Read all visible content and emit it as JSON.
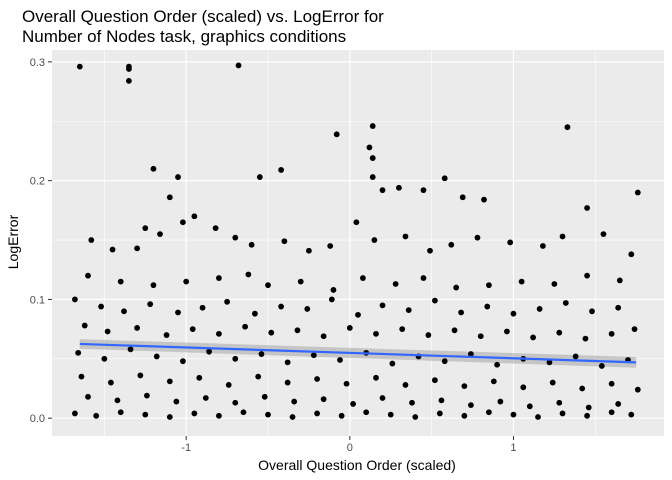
{
  "chart_data": {
    "type": "scatter",
    "title_lines": [
      "Overall Question Order (scaled) vs. LogError for",
      "Number of Nodes task, graphics conditions"
    ],
    "xlabel": "Overall Question Order (scaled)",
    "ylabel": "LogError",
    "xlim": [
      -1.82,
      1.92
    ],
    "ylim": [
      -0.015,
      0.31
    ],
    "x_ticks": [
      -1,
      0,
      1
    ],
    "x_tick_labels": [
      "-1",
      "0",
      "1"
    ],
    "y_ticks": [
      0.0,
      0.1,
      0.2,
      0.3
    ],
    "y_tick_labels": [
      "0.0",
      "0.1",
      "0.2",
      "0.3"
    ],
    "grid": true,
    "legend": "none",
    "colors": {
      "panel_background": "#ebebeb",
      "grid_major": "#ffffff",
      "points": "#000000",
      "trend_line": "#3366ff",
      "confidence_band": "#a6a6a6"
    },
    "trend_line": {
      "x": [
        -1.65,
        1.75
      ],
      "y": [
        0.0625,
        0.047
      ],
      "ci_halfwidth": 0.0045
    },
    "points": [
      [
        -1.65,
        0.296
      ],
      [
        -1.35,
        0.296
      ],
      [
        -1.35,
        0.294
      ],
      [
        -1.35,
        0.284
      ],
      [
        -0.68,
        0.297
      ],
      [
        -1.2,
        0.21
      ],
      [
        -1.05,
        0.203
      ],
      [
        -0.55,
        0.203
      ],
      [
        -0.42,
        0.209
      ],
      [
        -0.08,
        0.239
      ],
      [
        0.14,
        0.246
      ],
      [
        0.12,
        0.228
      ],
      [
        0.14,
        0.219
      ],
      [
        0.14,
        0.203
      ],
      [
        1.33,
        0.245
      ],
      [
        1.76,
        0.19
      ],
      [
        0.69,
        0.186
      ],
      [
        0.58,
        0.202
      ],
      [
        -1.1,
        0.186
      ],
      [
        -0.95,
        0.17
      ],
      [
        0.2,
        0.192
      ],
      [
        0.3,
        0.194
      ],
      [
        0.45,
        0.192
      ],
      [
        0.82,
        0.184
      ],
      [
        1.45,
        0.177
      ],
      [
        -1.58,
        0.15
      ],
      [
        -1.45,
        0.142
      ],
      [
        -1.3,
        0.143
      ],
      [
        -1.25,
        0.16
      ],
      [
        -1.16,
        0.155
      ],
      [
        -1.02,
        0.165
      ],
      [
        -0.82,
        0.16
      ],
      [
        -0.7,
        0.152
      ],
      [
        -0.6,
        0.146
      ],
      [
        -0.4,
        0.149
      ],
      [
        -0.25,
        0.141
      ],
      [
        -0.12,
        0.145
      ],
      [
        0.04,
        0.165
      ],
      [
        0.15,
        0.15
      ],
      [
        0.34,
        0.153
      ],
      [
        0.49,
        0.141
      ],
      [
        0.62,
        0.146
      ],
      [
        0.78,
        0.152
      ],
      [
        0.98,
        0.148
      ],
      [
        1.18,
        0.145
      ],
      [
        1.3,
        0.153
      ],
      [
        1.55,
        0.155
      ],
      [
        1.72,
        0.138
      ],
      [
        -1.6,
        0.12
      ],
      [
        -1.4,
        0.115
      ],
      [
        -1.2,
        0.112
      ],
      [
        -1.0,
        0.115
      ],
      [
        -0.8,
        0.118
      ],
      [
        -0.62,
        0.121
      ],
      [
        -0.5,
        0.112
      ],
      [
        -0.3,
        0.115
      ],
      [
        -0.1,
        0.108
      ],
      [
        0.08,
        0.118
      ],
      [
        0.28,
        0.113
      ],
      [
        0.45,
        0.118
      ],
      [
        0.65,
        0.11
      ],
      [
        0.85,
        0.112
      ],
      [
        1.05,
        0.115
      ],
      [
        1.25,
        0.113
      ],
      [
        1.45,
        0.12
      ],
      [
        1.65,
        0.116
      ],
      [
        -1.68,
        0.1
      ],
      [
        -1.52,
        0.094
      ],
      [
        -1.38,
        0.09
      ],
      [
        -1.22,
        0.096
      ],
      [
        -1.05,
        0.089
      ],
      [
        -0.9,
        0.093
      ],
      [
        -0.75,
        0.098
      ],
      [
        -0.58,
        0.088
      ],
      [
        -0.42,
        0.094
      ],
      [
        -0.26,
        0.092
      ],
      [
        -0.11,
        0.1
      ],
      [
        0.05,
        0.087
      ],
      [
        0.2,
        0.095
      ],
      [
        0.36,
        0.091
      ],
      [
        0.52,
        0.099
      ],
      [
        0.68,
        0.089
      ],
      [
        0.84,
        0.094
      ],
      [
        1.0,
        0.088
      ],
      [
        1.16,
        0.092
      ],
      [
        1.32,
        0.097
      ],
      [
        1.48,
        0.09
      ],
      [
        1.64,
        0.093
      ],
      [
        -1.62,
        0.078
      ],
      [
        -1.48,
        0.073
      ],
      [
        -1.3,
        0.076
      ],
      [
        -1.12,
        0.07
      ],
      [
        -0.96,
        0.075
      ],
      [
        -0.8,
        0.071
      ],
      [
        -0.64,
        0.077
      ],
      [
        -0.48,
        0.072
      ],
      [
        -0.32,
        0.074
      ],
      [
        -0.16,
        0.069
      ],
      [
        0.0,
        0.076
      ],
      [
        0.16,
        0.071
      ],
      [
        0.32,
        0.075
      ],
      [
        0.48,
        0.07
      ],
      [
        0.64,
        0.074
      ],
      [
        0.8,
        0.069
      ],
      [
        0.96,
        0.073
      ],
      [
        1.12,
        0.068
      ],
      [
        1.28,
        0.072
      ],
      [
        1.44,
        0.067
      ],
      [
        1.6,
        0.071
      ],
      [
        1.74,
        0.075
      ],
      [
        -1.66,
        0.055
      ],
      [
        -1.5,
        0.05
      ],
      [
        -1.34,
        0.058
      ],
      [
        -1.18,
        0.052
      ],
      [
        -1.02,
        0.048
      ],
      [
        -0.86,
        0.056
      ],
      [
        -0.7,
        0.05
      ],
      [
        -0.54,
        0.054
      ],
      [
        -0.38,
        0.047
      ],
      [
        -0.22,
        0.053
      ],
      [
        -0.06,
        0.049
      ],
      [
        0.1,
        0.055
      ],
      [
        0.26,
        0.046
      ],
      [
        0.42,
        0.052
      ],
      [
        0.58,
        0.048
      ],
      [
        0.74,
        0.054
      ],
      [
        0.9,
        0.045
      ],
      [
        1.06,
        0.05
      ],
      [
        1.22,
        0.047
      ],
      [
        1.38,
        0.052
      ],
      [
        1.54,
        0.044
      ],
      [
        1.7,
        0.049
      ],
      [
        -1.64,
        0.035
      ],
      [
        -1.46,
        0.03
      ],
      [
        -1.28,
        0.036
      ],
      [
        -1.1,
        0.031
      ],
      [
        -0.92,
        0.034
      ],
      [
        -0.74,
        0.028
      ],
      [
        -0.56,
        0.035
      ],
      [
        -0.38,
        0.03
      ],
      [
        -0.2,
        0.033
      ],
      [
        -0.02,
        0.029
      ],
      [
        0.16,
        0.034
      ],
      [
        0.34,
        0.028
      ],
      [
        0.52,
        0.032
      ],
      [
        0.7,
        0.027
      ],
      [
        0.88,
        0.031
      ],
      [
        1.06,
        0.026
      ],
      [
        1.24,
        0.03
      ],
      [
        1.42,
        0.025
      ],
      [
        1.6,
        0.029
      ],
      [
        1.76,
        0.024
      ],
      [
        -1.6,
        0.018
      ],
      [
        -1.42,
        0.015
      ],
      [
        -1.24,
        0.019
      ],
      [
        -1.06,
        0.014
      ],
      [
        -0.88,
        0.017
      ],
      [
        -0.7,
        0.013
      ],
      [
        -0.52,
        0.018
      ],
      [
        -0.34,
        0.014
      ],
      [
        -0.16,
        0.016
      ],
      [
        0.02,
        0.012
      ],
      [
        0.2,
        0.017
      ],
      [
        0.38,
        0.013
      ],
      [
        0.56,
        0.015
      ],
      [
        0.74,
        0.011
      ],
      [
        0.92,
        0.014
      ],
      [
        1.1,
        0.01
      ],
      [
        1.28,
        0.013
      ],
      [
        1.46,
        0.009
      ],
      [
        1.64,
        0.012
      ],
      [
        -1.68,
        0.004
      ],
      [
        -1.55,
        0.002
      ],
      [
        -1.4,
        0.005
      ],
      [
        -1.25,
        0.003
      ],
      [
        -1.1,
        0.001
      ],
      [
        -0.95,
        0.004
      ],
      [
        -0.8,
        0.002
      ],
      [
        -0.65,
        0.005
      ],
      [
        -0.5,
        0.003
      ],
      [
        -0.35,
        0.001
      ],
      [
        -0.2,
        0.004
      ],
      [
        -0.05,
        0.002
      ],
      [
        0.1,
        0.005
      ],
      [
        0.25,
        0.003
      ],
      [
        0.4,
        0.001
      ],
      [
        0.55,
        0.004
      ],
      [
        0.7,
        0.002
      ],
      [
        0.85,
        0.005
      ],
      [
        1.0,
        0.003
      ],
      [
        1.15,
        0.001
      ],
      [
        1.3,
        0.004
      ],
      [
        1.45,
        0.002
      ],
      [
        1.6,
        0.005
      ],
      [
        1.72,
        0.003
      ]
    ]
  }
}
